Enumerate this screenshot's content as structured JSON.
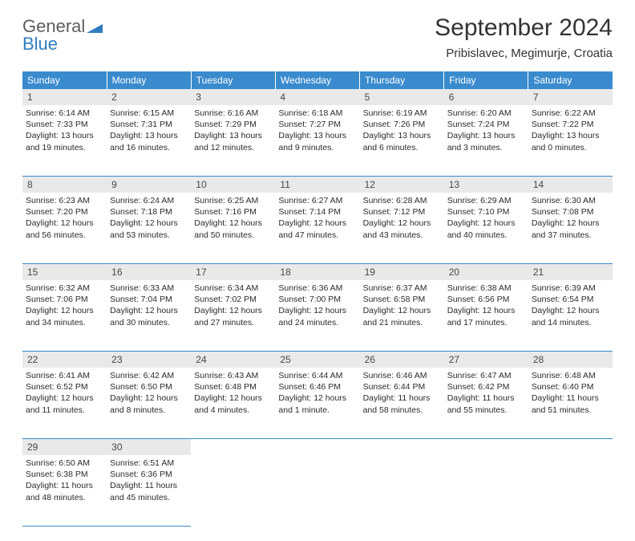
{
  "brand": {
    "part1": "General",
    "part2": "Blue"
  },
  "title": "September 2024",
  "location": "Pribislavec, Megimurje, Croatia",
  "header_bg": "#3a8bce",
  "day_bg": "#e9e9e9",
  "weekday_labels": [
    "Sunday",
    "Monday",
    "Tuesday",
    "Wednesday",
    "Thursday",
    "Friday",
    "Saturday"
  ],
  "weeks": [
    [
      {
        "n": "1",
        "sunrise": "Sunrise: 6:14 AM",
        "sunset": "Sunset: 7:33 PM",
        "dl1": "Daylight: 13 hours",
        "dl2": "and 19 minutes."
      },
      {
        "n": "2",
        "sunrise": "Sunrise: 6:15 AM",
        "sunset": "Sunset: 7:31 PM",
        "dl1": "Daylight: 13 hours",
        "dl2": "and 16 minutes."
      },
      {
        "n": "3",
        "sunrise": "Sunrise: 6:16 AM",
        "sunset": "Sunset: 7:29 PM",
        "dl1": "Daylight: 13 hours",
        "dl2": "and 12 minutes."
      },
      {
        "n": "4",
        "sunrise": "Sunrise: 6:18 AM",
        "sunset": "Sunset: 7:27 PM",
        "dl1": "Daylight: 13 hours",
        "dl2": "and 9 minutes."
      },
      {
        "n": "5",
        "sunrise": "Sunrise: 6:19 AM",
        "sunset": "Sunset: 7:26 PM",
        "dl1": "Daylight: 13 hours",
        "dl2": "and 6 minutes."
      },
      {
        "n": "6",
        "sunrise": "Sunrise: 6:20 AM",
        "sunset": "Sunset: 7:24 PM",
        "dl1": "Daylight: 13 hours",
        "dl2": "and 3 minutes."
      },
      {
        "n": "7",
        "sunrise": "Sunrise: 6:22 AM",
        "sunset": "Sunset: 7:22 PM",
        "dl1": "Daylight: 13 hours",
        "dl2": "and 0 minutes."
      }
    ],
    [
      {
        "n": "8",
        "sunrise": "Sunrise: 6:23 AM",
        "sunset": "Sunset: 7:20 PM",
        "dl1": "Daylight: 12 hours",
        "dl2": "and 56 minutes."
      },
      {
        "n": "9",
        "sunrise": "Sunrise: 6:24 AM",
        "sunset": "Sunset: 7:18 PM",
        "dl1": "Daylight: 12 hours",
        "dl2": "and 53 minutes."
      },
      {
        "n": "10",
        "sunrise": "Sunrise: 6:25 AM",
        "sunset": "Sunset: 7:16 PM",
        "dl1": "Daylight: 12 hours",
        "dl2": "and 50 minutes."
      },
      {
        "n": "11",
        "sunrise": "Sunrise: 6:27 AM",
        "sunset": "Sunset: 7:14 PM",
        "dl1": "Daylight: 12 hours",
        "dl2": "and 47 minutes."
      },
      {
        "n": "12",
        "sunrise": "Sunrise: 6:28 AM",
        "sunset": "Sunset: 7:12 PM",
        "dl1": "Daylight: 12 hours",
        "dl2": "and 43 minutes."
      },
      {
        "n": "13",
        "sunrise": "Sunrise: 6:29 AM",
        "sunset": "Sunset: 7:10 PM",
        "dl1": "Daylight: 12 hours",
        "dl2": "and 40 minutes."
      },
      {
        "n": "14",
        "sunrise": "Sunrise: 6:30 AM",
        "sunset": "Sunset: 7:08 PM",
        "dl1": "Daylight: 12 hours",
        "dl2": "and 37 minutes."
      }
    ],
    [
      {
        "n": "15",
        "sunrise": "Sunrise: 6:32 AM",
        "sunset": "Sunset: 7:06 PM",
        "dl1": "Daylight: 12 hours",
        "dl2": "and 34 minutes."
      },
      {
        "n": "16",
        "sunrise": "Sunrise: 6:33 AM",
        "sunset": "Sunset: 7:04 PM",
        "dl1": "Daylight: 12 hours",
        "dl2": "and 30 minutes."
      },
      {
        "n": "17",
        "sunrise": "Sunrise: 6:34 AM",
        "sunset": "Sunset: 7:02 PM",
        "dl1": "Daylight: 12 hours",
        "dl2": "and 27 minutes."
      },
      {
        "n": "18",
        "sunrise": "Sunrise: 6:36 AM",
        "sunset": "Sunset: 7:00 PM",
        "dl1": "Daylight: 12 hours",
        "dl2": "and 24 minutes."
      },
      {
        "n": "19",
        "sunrise": "Sunrise: 6:37 AM",
        "sunset": "Sunset: 6:58 PM",
        "dl1": "Daylight: 12 hours",
        "dl2": "and 21 minutes."
      },
      {
        "n": "20",
        "sunrise": "Sunrise: 6:38 AM",
        "sunset": "Sunset: 6:56 PM",
        "dl1": "Daylight: 12 hours",
        "dl2": "and 17 minutes."
      },
      {
        "n": "21",
        "sunrise": "Sunrise: 6:39 AM",
        "sunset": "Sunset: 6:54 PM",
        "dl1": "Daylight: 12 hours",
        "dl2": "and 14 minutes."
      }
    ],
    [
      {
        "n": "22",
        "sunrise": "Sunrise: 6:41 AM",
        "sunset": "Sunset: 6:52 PM",
        "dl1": "Daylight: 12 hours",
        "dl2": "and 11 minutes."
      },
      {
        "n": "23",
        "sunrise": "Sunrise: 6:42 AM",
        "sunset": "Sunset: 6:50 PM",
        "dl1": "Daylight: 12 hours",
        "dl2": "and 8 minutes."
      },
      {
        "n": "24",
        "sunrise": "Sunrise: 6:43 AM",
        "sunset": "Sunset: 6:48 PM",
        "dl1": "Daylight: 12 hours",
        "dl2": "and 4 minutes."
      },
      {
        "n": "25",
        "sunrise": "Sunrise: 6:44 AM",
        "sunset": "Sunset: 6:46 PM",
        "dl1": "Daylight: 12 hours",
        "dl2": "and 1 minute."
      },
      {
        "n": "26",
        "sunrise": "Sunrise: 6:46 AM",
        "sunset": "Sunset: 6:44 PM",
        "dl1": "Daylight: 11 hours",
        "dl2": "and 58 minutes."
      },
      {
        "n": "27",
        "sunrise": "Sunrise: 6:47 AM",
        "sunset": "Sunset: 6:42 PM",
        "dl1": "Daylight: 11 hours",
        "dl2": "and 55 minutes."
      },
      {
        "n": "28",
        "sunrise": "Sunrise: 6:48 AM",
        "sunset": "Sunset: 6:40 PM",
        "dl1": "Daylight: 11 hours",
        "dl2": "and 51 minutes."
      }
    ],
    [
      {
        "n": "29",
        "sunrise": "Sunrise: 6:50 AM",
        "sunset": "Sunset: 6:38 PM",
        "dl1": "Daylight: 11 hours",
        "dl2": "and 48 minutes."
      },
      {
        "n": "30",
        "sunrise": "Sunrise: 6:51 AM",
        "sunset": "Sunset: 6:36 PM",
        "dl1": "Daylight: 11 hours",
        "dl2": "and 45 minutes."
      },
      null,
      null,
      null,
      null,
      null
    ]
  ]
}
